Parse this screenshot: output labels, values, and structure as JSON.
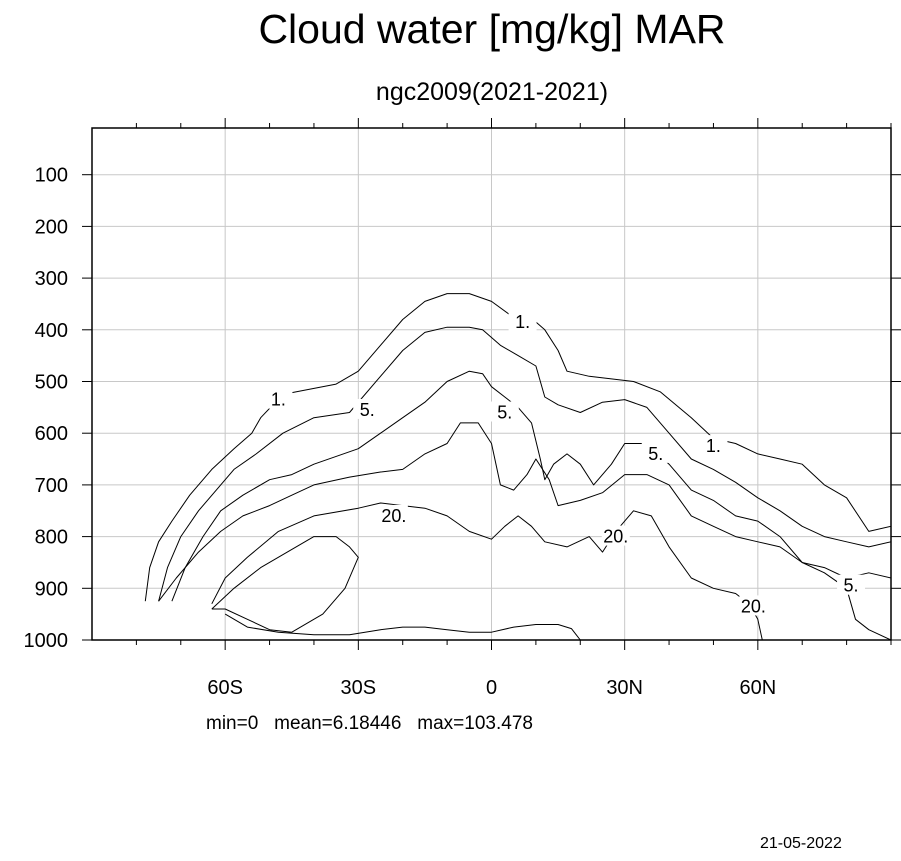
{
  "title": "Cloud water [mg/kg] MAR",
  "subtitle": "ngc2009(2021-2021)",
  "stats": {
    "min": "min=0",
    "mean": "mean=6.18446",
    "max": "max=103.478"
  },
  "date": "21-05-2022",
  "chart_data": {
    "type": "contour",
    "title": "Cloud water [mg/kg] MAR",
    "subtitle": "ngc2009(2021-2021)",
    "xlim": [
      -90,
      90
    ],
    "ylim": [
      1000,
      0
    ],
    "x_ticks": [
      -60,
      -30,
      0,
      30,
      60
    ],
    "x_tick_labels": [
      "60S",
      "30S",
      "0",
      "30N",
      "60N"
    ],
    "y_ticks": [
      100,
      200,
      300,
      400,
      500,
      600,
      700,
      800,
      900,
      1000
    ],
    "y_tick_labels": [
      "100",
      "200",
      "300",
      "400",
      "500",
      "600",
      "700",
      "800",
      "900",
      "1000"
    ],
    "grid": true,
    "contour_levels": [
      1,
      5,
      20
    ],
    "contours": [
      {
        "level": 1,
        "points": [
          [
            -78,
            925
          ],
          [
            -77,
            860
          ],
          [
            -75,
            810
          ],
          [
            -72,
            770
          ],
          [
            -68,
            720
          ],
          [
            -63,
            670
          ],
          [
            -58,
            630
          ],
          [
            -54,
            600
          ],
          [
            -52,
            570
          ],
          [
            -47,
            525
          ],
          [
            -35,
            505
          ],
          [
            -30,
            480
          ],
          [
            -25,
            430
          ],
          [
            -20,
            380
          ],
          [
            -15,
            345
          ],
          [
            -10,
            330
          ],
          [
            -5,
            330
          ],
          [
            0,
            345
          ],
          [
            4,
            370
          ],
          [
            8,
            375
          ],
          [
            10,
            385
          ],
          [
            12,
            400
          ],
          [
            15,
            440
          ],
          [
            17,
            480
          ],
          [
            22,
            490
          ],
          [
            27,
            495
          ],
          [
            32,
            500
          ],
          [
            38,
            520
          ],
          [
            45,
            570
          ],
          [
            50,
            610
          ],
          [
            55,
            620
          ],
          [
            60,
            640
          ],
          [
            65,
            650
          ],
          [
            70,
            660
          ],
          [
            75,
            700
          ],
          [
            80,
            725
          ],
          [
            85,
            790
          ],
          [
            90,
            780
          ]
        ]
      },
      {
        "level": 5,
        "points": [
          [
            -75,
            925
          ],
          [
            -73,
            860
          ],
          [
            -70,
            800
          ],
          [
            -66,
            750
          ],
          [
            -62,
            710
          ],
          [
            -58,
            670
          ],
          [
            -53,
            640
          ],
          [
            -47,
            600
          ],
          [
            -40,
            570
          ],
          [
            -32,
            560
          ],
          [
            -25,
            490
          ],
          [
            -20,
            440
          ],
          [
            -15,
            405
          ],
          [
            -10,
            395
          ],
          [
            -5,
            395
          ],
          [
            -2,
            400
          ],
          [
            2,
            430
          ],
          [
            6,
            450
          ],
          [
            10,
            470
          ],
          [
            12,
            530
          ],
          [
            15,
            545
          ],
          [
            20,
            560
          ],
          [
            25,
            540
          ],
          [
            30,
            535
          ],
          [
            35,
            550
          ],
          [
            40,
            600
          ],
          [
            45,
            650
          ],
          [
            50,
            670
          ],
          [
            55,
            695
          ],
          [
            60,
            725
          ],
          [
            65,
            750
          ],
          [
            70,
            780
          ],
          [
            75,
            800
          ],
          [
            80,
            810
          ],
          [
            85,
            820
          ],
          [
            90,
            810
          ]
        ]
      },
      {
        "level": 5,
        "points": [
          [
            -72,
            925
          ],
          [
            -69,
            860
          ],
          [
            -65,
            800
          ],
          [
            -61,
            750
          ],
          [
            -56,
            720
          ],
          [
            -50,
            690
          ],
          [
            -45,
            680
          ],
          [
            -40,
            660
          ],
          [
            -30,
            630
          ],
          [
            -25,
            600
          ],
          [
            -20,
            570
          ],
          [
            -15,
            540
          ],
          [
            -10,
            500
          ],
          [
            -5,
            480
          ],
          [
            -2,
            485
          ],
          [
            0,
            510
          ],
          [
            3,
            530
          ],
          [
            6,
            550
          ],
          [
            9,
            580
          ],
          [
            11,
            650
          ],
          [
            12,
            690
          ],
          [
            14,
            660
          ],
          [
            17,
            640
          ],
          [
            20,
            660
          ],
          [
            23,
            700
          ],
          [
            27,
            660
          ],
          [
            30,
            620
          ],
          [
            35,
            620
          ],
          [
            40,
            660
          ],
          [
            45,
            710
          ],
          [
            50,
            730
          ],
          [
            55,
            760
          ],
          [
            60,
            770
          ],
          [
            65,
            800
          ],
          [
            70,
            850
          ],
          [
            75,
            860
          ],
          [
            80,
            880
          ],
          [
            85,
            870
          ],
          [
            90,
            880
          ]
        ]
      },
      {
        "level": 20,
        "points": [
          [
            -63,
            930
          ],
          [
            -60,
            880
          ],
          [
            -55,
            840
          ],
          [
            -48,
            790
          ],
          [
            -40,
            760
          ],
          [
            -30,
            745
          ],
          [
            -25,
            735
          ],
          [
            -20,
            740
          ],
          [
            -15,
            745
          ],
          [
            -10,
            760
          ],
          [
            -5,
            790
          ],
          [
            0,
            805
          ],
          [
            3,
            780
          ],
          [
            6,
            760
          ],
          [
            9,
            780
          ],
          [
            12,
            810
          ],
          [
            17,
            820
          ],
          [
            22,
            800
          ],
          [
            25,
            830
          ],
          [
            28,
            790
          ],
          [
            32,
            750
          ],
          [
            36,
            760
          ],
          [
            40,
            820
          ],
          [
            45,
            880
          ],
          [
            50,
            900
          ],
          [
            55,
            910
          ],
          [
            58,
            930
          ],
          [
            60,
            960
          ],
          [
            61,
            1000
          ]
        ]
      },
      {
        "level": 20,
        "points": [
          [
            -75,
            925
          ],
          [
            -71,
            880
          ],
          [
            -66,
            830
          ],
          [
            -61,
            790
          ],
          [
            -56,
            760
          ],
          [
            -50,
            740
          ],
          [
            -45,
            720
          ],
          [
            -40,
            700
          ],
          [
            -32,
            685
          ],
          [
            -25,
            675
          ],
          [
            -20,
            670
          ],
          [
            -15,
            640
          ],
          [
            -10,
            620
          ],
          [
            -7,
            580
          ],
          [
            -3,
            580
          ],
          [
            0,
            620
          ],
          [
            2,
            700
          ],
          [
            5,
            710
          ],
          [
            8,
            680
          ],
          [
            10,
            650
          ],
          [
            13,
            690
          ],
          [
            15,
            740
          ],
          [
            20,
            730
          ],
          [
            25,
            715
          ],
          [
            30,
            680
          ],
          [
            35,
            680
          ],
          [
            40,
            700
          ],
          [
            45,
            760
          ],
          [
            50,
            780
          ],
          [
            55,
            800
          ],
          [
            60,
            810
          ],
          [
            65,
            820
          ],
          [
            70,
            850
          ],
          [
            75,
            870
          ],
          [
            80,
            900
          ],
          [
            82,
            960
          ],
          [
            85,
            980
          ],
          [
            90,
            1000
          ]
        ]
      },
      {
        "level": 20,
        "points": [
          [
            -63,
            940
          ],
          [
            -58,
            900
          ],
          [
            -52,
            860
          ],
          [
            -46,
            830
          ],
          [
            -40,
            800
          ],
          [
            -35,
            800
          ],
          [
            -32,
            820
          ],
          [
            -30,
            840
          ],
          [
            -33,
            900
          ],
          [
            -38,
            950
          ],
          [
            -45,
            985
          ],
          [
            -50,
            980
          ],
          [
            -55,
            960
          ],
          [
            -60,
            940
          ],
          [
            -63,
            940
          ]
        ]
      },
      {
        "level": 20,
        "points": [
          [
            -60,
            950
          ],
          [
            -55,
            975
          ],
          [
            -48,
            985
          ],
          [
            -40,
            990
          ],
          [
            -32,
            990
          ],
          [
            -25,
            980
          ],
          [
            -20,
            975
          ],
          [
            -15,
            975
          ],
          [
            -10,
            980
          ],
          [
            -5,
            985
          ],
          [
            0,
            985
          ],
          [
            5,
            975
          ],
          [
            10,
            970
          ],
          [
            15,
            970
          ],
          [
            18,
            978
          ],
          [
            20,
            1000
          ]
        ]
      }
    ],
    "contour_labels": [
      {
        "text": "1.",
        "x": -48,
        "y": 535
      },
      {
        "text": "1.",
        "x": 7,
        "y": 385
      },
      {
        "text": "1.",
        "x": 50,
        "y": 625
      },
      {
        "text": "5.",
        "x": -28,
        "y": 555
      },
      {
        "text": "5.",
        "x": 3,
        "y": 560
      },
      {
        "text": "5.",
        "x": 37,
        "y": 640
      },
      {
        "text": "5.",
        "x": 81,
        "y": 895
      },
      {
        "text": "20.",
        "x": -22,
        "y": 760
      },
      {
        "text": "20.",
        "x": 28,
        "y": 800
      },
      {
        "text": "20.",
        "x": 59,
        "y": 935
      }
    ]
  }
}
